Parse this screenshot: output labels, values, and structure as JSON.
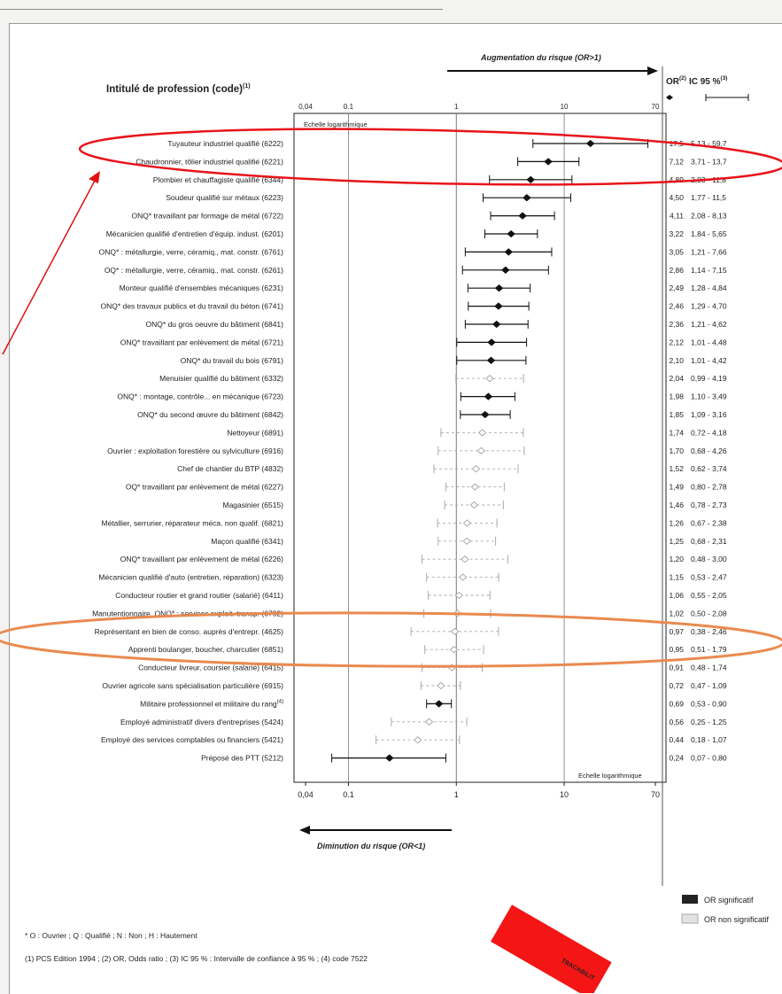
{
  "header": {
    "column_title": "Intitulé de profession (code)",
    "column_title_sup": "(1)",
    "risk_increase": "Augmentation du risque (OR>1)",
    "risk_decrease": "Diminution du risque (OR<1)",
    "or_header": "OR",
    "or_header_sup": "(2)",
    "ci_header": "IC 95 %",
    "ci_header_sup": "(3)",
    "log_scale_label": "Echelle logarithmique"
  },
  "legend": {
    "significant": "OR significatif",
    "not_significant": "OR non significatif"
  },
  "footnotes": {
    "line1": "* O : Ouvrier ; Q : Qualifié ; N : Non ; H : Hautement",
    "line2": "(1) PCS Edition 1994  ;  (2) OR, Odds ratio  ;  (3) IC 95 % : Intervalle de confiance à 95 %  ;  (4) code 7522"
  },
  "stamp_text": "TRACABILIT",
  "colors": {
    "highlight_top": "#e8131b",
    "highlight_bottom": "#e98a4f",
    "stamp": "#f41515",
    "arrow": "#e01010"
  },
  "chart_data": {
    "type": "forest",
    "x_scale": "log",
    "xlim": [
      0.04,
      70
    ],
    "x_ticks": [
      "0,04",
      "0.1",
      "1",
      "10",
      "70"
    ],
    "rows": [
      {
        "label": "Tuyauteur industriel qualifié (6222)",
        "or": 17.5,
        "lo": 5.13,
        "hi": 59.7,
        "or_text": "17,5",
        "ci_text": "5,13 - 59,7",
        "significant": true
      },
      {
        "label": "Chaudronnier, tôlier industriel qualifié (6221)",
        "or": 7.12,
        "lo": 3.71,
        "hi": 13.7,
        "or_text": "7,12",
        "ci_text": "3,71 - 13,7",
        "significant": true
      },
      {
        "label": "Plombier et chauffagiste qualifié (6344)",
        "or": 4.89,
        "lo": 2.03,
        "hi": 11.8,
        "or_text": "4,89",
        "ci_text": "2,03 - 11,8",
        "significant": true
      },
      {
        "label": "Soudeur qualifié sur métaux (6223)",
        "or": 4.5,
        "lo": 1.77,
        "hi": 11.5,
        "or_text": "4,50",
        "ci_text": "1,77 - 11,5",
        "significant": true
      },
      {
        "label": "ONQ* travaillant par formage de métal (6722)",
        "or": 4.11,
        "lo": 2.08,
        "hi": 8.13,
        "or_text": "4,11",
        "ci_text": "2,08 - 8,13",
        "significant": true
      },
      {
        "label": "Mécanicien qualifié d'entretien d'équip. indust. (6201)",
        "or": 3.22,
        "lo": 1.84,
        "hi": 5.65,
        "or_text": "3,22",
        "ci_text": "1,84 - 5,65",
        "significant": true
      },
      {
        "label": "ONQ* : métallurgie, verre, céramiq., mat. constr. (6761)",
        "or": 3.05,
        "lo": 1.21,
        "hi": 7.66,
        "or_text": "3,05",
        "ci_text": "1,21 - 7,66",
        "significant": true
      },
      {
        "label": "OQ* : métallurgie, verre, céramiq., mat. constr. (6261)",
        "or": 2.86,
        "lo": 1.14,
        "hi": 7.15,
        "or_text": "2,86",
        "ci_text": "1,14 - 7,15",
        "significant": true
      },
      {
        "label": "Monteur qualifié d'ensembles mécaniques (6231)",
        "or": 2.49,
        "lo": 1.28,
        "hi": 4.84,
        "or_text": "2,49",
        "ci_text": "1,28 - 4,84",
        "significant": true
      },
      {
        "label": "ONQ* des travaux publics et du travail du béton (6741)",
        "or": 2.46,
        "lo": 1.29,
        "hi": 4.7,
        "or_text": "2,46",
        "ci_text": "1,29 - 4,70",
        "significant": true
      },
      {
        "label": "ONQ* du gros oeuvre du bâtiment (6841)",
        "or": 2.36,
        "lo": 1.21,
        "hi": 4.62,
        "or_text": "2,36",
        "ci_text": "1,21 - 4,62",
        "significant": true
      },
      {
        "label": "ONQ* travaillant par enlèvement de métal (6721)",
        "or": 2.12,
        "lo": 1.01,
        "hi": 4.48,
        "or_text": "2,12",
        "ci_text": "1,01 - 4,48",
        "significant": true
      },
      {
        "label": "ONQ* du travail du bois (6791)",
        "or": 2.1,
        "lo": 1.01,
        "hi": 4.42,
        "or_text": "2,10",
        "ci_text": "1,01 - 4,42",
        "significant": true
      },
      {
        "label": "Menuisier qualifié du bâtiment (6332)",
        "or": 2.04,
        "lo": 0.99,
        "hi": 4.19,
        "or_text": "2,04",
        "ci_text": "0,99 - 4,19",
        "significant": false
      },
      {
        "label": "ONQ* : montage, contrôle... en mécanique (6723)",
        "or": 1.98,
        "lo": 1.1,
        "hi": 3.49,
        "or_text": "1,98",
        "ci_text": "1,10 - 3,49",
        "significant": true
      },
      {
        "label": "ONQ* du second œuvre du bâtiment (6842)",
        "or": 1.85,
        "lo": 1.09,
        "hi": 3.16,
        "or_text": "1,85",
        "ci_text": "1,09 - 3,16",
        "significant": true
      },
      {
        "label": "Nettoyeur (6891)",
        "or": 1.74,
        "lo": 0.72,
        "hi": 4.18,
        "or_text": "1,74",
        "ci_text": "0,72 - 4,18",
        "significant": false
      },
      {
        "label": "Ouvrier : exploitation forestière ou sylviculture (6916)",
        "or": 1.7,
        "lo": 0.68,
        "hi": 4.26,
        "or_text": "1,70",
        "ci_text": "0,68 - 4,26",
        "significant": false
      },
      {
        "label": "Chef de chantier du BTP (4832)",
        "or": 1.52,
        "lo": 0.62,
        "hi": 3.74,
        "or_text": "1,52",
        "ci_text": "0,62 - 3,74",
        "significant": false
      },
      {
        "label": "OQ* travaillant par enlèvement de métal (6227)",
        "or": 1.49,
        "lo": 0.8,
        "hi": 2.78,
        "or_text": "1,49",
        "ci_text": "0,80 - 2,78",
        "significant": false
      },
      {
        "label": "Magasinier (6515)",
        "or": 1.46,
        "lo": 0.78,
        "hi": 2.73,
        "or_text": "1,46",
        "ci_text": "0,78 - 2,73",
        "significant": false
      },
      {
        "label": "Métallier, serrurier, réparateur méca. non qualif. (6821)",
        "or": 1.26,
        "lo": 0.67,
        "hi": 2.38,
        "or_text": "1,26",
        "ci_text": "0,67 - 2,38",
        "significant": false
      },
      {
        "label": "Maçon qualifié (6341)",
        "or": 1.25,
        "lo": 0.68,
        "hi": 2.31,
        "or_text": "1,25",
        "ci_text": "0,68 - 2,31",
        "significant": false
      },
      {
        "label": "ONQ* travaillant par enlèvement de métal (6226)",
        "or": 1.2,
        "lo": 0.48,
        "hi": 3.0,
        "or_text": "1,20",
        "ci_text": "0,48 - 3,00",
        "significant": false
      },
      {
        "label": "Mécanicien qualifié d'auto (entretien, réparation) (6323)",
        "or": 1.15,
        "lo": 0.53,
        "hi": 2.47,
        "or_text": "1,15",
        "ci_text": "0,53 - 2,47",
        "significant": false
      },
      {
        "label": "Conducteur routier et grand routier (salarié) (6411)",
        "or": 1.06,
        "lo": 0.55,
        "hi": 2.05,
        "or_text": "1,06",
        "ci_text": "0,55 - 2,05",
        "significant": false
      },
      {
        "label": "Manutentionnaire, ONQ* : services exploit. transp. (6792)",
        "or": 1.02,
        "lo": 0.5,
        "hi": 2.08,
        "or_text": "1,02",
        "ci_text": "0,50 - 2,08",
        "significant": false
      },
      {
        "label": "Représentant en bien de conso. auprès d'entrepr. (4625)",
        "or": 0.97,
        "lo": 0.38,
        "hi": 2.46,
        "or_text": "0,97",
        "ci_text": "0,38 - 2,46",
        "significant": false
      },
      {
        "label": "Apprenti boulanger, boucher, charcutier (6851)",
        "or": 0.95,
        "lo": 0.51,
        "hi": 1.79,
        "or_text": "0,95",
        "ci_text": "0,51 - 1,79",
        "significant": false
      },
      {
        "label": "Conducteur livreur, coursier (salarié) (6415)",
        "or": 0.91,
        "lo": 0.48,
        "hi": 1.74,
        "or_text": "0,91",
        "ci_text": "0,48 - 1,74",
        "significant": false
      },
      {
        "label": "Ouvrier agricole sans spécialisation particulière (6915)",
        "or": 0.72,
        "lo": 0.47,
        "hi": 1.09,
        "or_text": "0,72",
        "ci_text": "0,47 - 1,09",
        "significant": false
      },
      {
        "label": "Militaire professionnel et militaire du rang",
        "label_sup": "(4)",
        "or": 0.69,
        "lo": 0.53,
        "hi": 0.9,
        "or_text": "0,69",
        "ci_text": "0,53 - 0,90",
        "significant": true
      },
      {
        "label": "Employé administratif divers d'entreprises (5424)",
        "or": 0.56,
        "lo": 0.25,
        "hi": 1.25,
        "or_text": "0,56",
        "ci_text": "0,25 - 1,25",
        "significant": false
      },
      {
        "label": "Employé des services comptables ou financiers (5421)",
        "or": 0.44,
        "lo": 0.18,
        "hi": 1.07,
        "or_text": "0,44",
        "ci_text": "0,18 - 1,07",
        "significant": false
      },
      {
        "label": "Préposé des PTT (5212)",
        "or": 0.24,
        "lo": 0.07,
        "hi": 0.8,
        "or_text": "0,24",
        "ci_text": "0,07 - 0,80",
        "significant": true
      }
    ]
  }
}
